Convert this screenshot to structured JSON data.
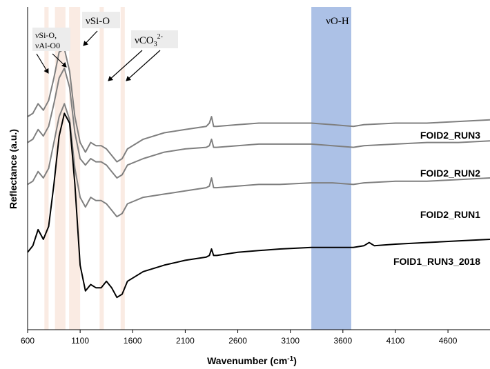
{
  "chart_data": {
    "type": "line",
    "xlabel": "Wavenumber (cm",
    "xlabel_sup": "-1",
    "xlabel_close": ")",
    "ylabel": "Reflectance (a.u.)",
    "xlim": [
      600,
      5000
    ],
    "ylim": [
      0,
      100
    ],
    "y_ticks_shown": false,
    "x_ticks": [
      600,
      1100,
      1600,
      2100,
      2600,
      3100,
      3600,
      4100,
      4600
    ],
    "grid": false,
    "bands": [
      {
        "range": [
          760,
          800
        ],
        "color": "#f7ddd0",
        "opacity": 0.6
      },
      {
        "range": [
          860,
          960
        ],
        "color": "#f7ddd0",
        "opacity": 0.6
      },
      {
        "range": [
          995,
          1100
        ],
        "color": "#f7ddd0",
        "opacity": 0.6
      },
      {
        "range": [
          1285,
          1325
        ],
        "color": "#f7ddd0",
        "opacity": 0.6
      },
      {
        "range": [
          1485,
          1525
        ],
        "color": "#f7ddd0",
        "opacity": 0.6
      },
      {
        "range": [
          3300,
          3680
        ],
        "color": "#7f9fd8",
        "opacity": 0.65
      }
    ],
    "annotations": [
      {
        "id": "si-o-al-o",
        "lines": [
          "νSi-O,",
          "νAl-O0"
        ]
      },
      {
        "id": "si-o",
        "lines": [
          "νSi-O"
        ]
      },
      {
        "id": "co3",
        "lines": [
          "νCO"
        ],
        "sub": "3",
        "sup": "2-"
      },
      {
        "id": "o-h",
        "lines": [
          "νO-H"
        ]
      }
    ],
    "series": [
      {
        "name": "FOID2_RUN3",
        "color": "#7f7f7f",
        "x": [
          600,
          650,
          700,
          750,
          800,
          850,
          900,
          950,
          1000,
          1050,
          1100,
          1150,
          1200,
          1250,
          1300,
          1350,
          1400,
          1450,
          1500,
          1550,
          1700,
          1900,
          2100,
          2300,
          2330,
          2350,
          2370,
          2400,
          2600,
          2800,
          3000,
          3300,
          3500,
          3700,
          3800,
          4100,
          4400,
          4700,
          5000
        ],
        "y": [
          66,
          67,
          70,
          68,
          71,
          78,
          86,
          87,
          80,
          66,
          58,
          55,
          58,
          57,
          57,
          56,
          54,
          52,
          53,
          56,
          59,
          61,
          62,
          63,
          64,
          66,
          63,
          63,
          63.5,
          64,
          64,
          64,
          63.5,
          63,
          63.5,
          64,
          64,
          64.5,
          65
        ]
      },
      {
        "name": "FOID2_RUN2",
        "color": "#7f7f7f",
        "x": [
          600,
          650,
          700,
          750,
          800,
          850,
          900,
          950,
          1000,
          1050,
          1100,
          1150,
          1200,
          1250,
          1300,
          1350,
          1400,
          1450,
          1500,
          1550,
          1700,
          1900,
          2100,
          2300,
          2330,
          2350,
          2370,
          2400,
          2600,
          2800,
          3000,
          3300,
          3500,
          3700,
          3800,
          4100,
          4400,
          4700,
          5000
        ],
        "y": [
          58,
          59,
          62,
          60,
          63,
          70,
          78,
          81,
          75,
          61,
          53,
          51,
          53,
          52,
          52,
          51,
          49,
          47,
          48,
          51,
          53,
          55,
          56,
          56.5,
          57,
          59,
          56.5,
          56.5,
          57,
          57.5,
          57.5,
          57.5,
          57,
          56.5,
          57,
          57.5,
          58,
          58,
          58.5
        ]
      },
      {
        "name": "FOID2_RUN1",
        "color": "#7f7f7f",
        "x": [
          600,
          650,
          700,
          750,
          800,
          850,
          900,
          950,
          1000,
          1050,
          1100,
          1150,
          1200,
          1250,
          1300,
          1350,
          1400,
          1450,
          1500,
          1550,
          1700,
          1900,
          2100,
          2300,
          2330,
          2350,
          2370,
          2400,
          2600,
          2800,
          3000,
          3300,
          3500,
          3700,
          3800,
          4100,
          4400,
          4700,
          5000
        ],
        "y": [
          45,
          46,
          49,
          47,
          50,
          58,
          66,
          70,
          65,
          50,
          41,
          38,
          41,
          40,
          40,
          39,
          37,
          35,
          36,
          39,
          41,
          42,
          43,
          44,
          44.5,
          47,
          44,
          44,
          44.5,
          45,
          45,
          45.5,
          45.5,
          45,
          45.5,
          46,
          46,
          46.5,
          47
        ]
      },
      {
        "name": "FOID1_RUN3_2018",
        "color": "#000000",
        "x": [
          600,
          650,
          700,
          750,
          800,
          850,
          900,
          950,
          1000,
          1050,
          1100,
          1150,
          1200,
          1250,
          1300,
          1350,
          1400,
          1450,
          1500,
          1550,
          1700,
          1900,
          2100,
          2300,
          2330,
          2350,
          2370,
          2400,
          2600,
          2800,
          3000,
          3300,
          3500,
          3700,
          3800,
          3850,
          3900,
          4100,
          4400,
          4700,
          5000
        ],
        "y": [
          24,
          26,
          31,
          28,
          32,
          45,
          60,
          67,
          64,
          45,
          20,
          12,
          14,
          13,
          13,
          15,
          13,
          10,
          11,
          15,
          18,
          20,
          21.5,
          22.5,
          23,
          25,
          23,
          23,
          24,
          24.5,
          25,
          25.5,
          25.5,
          25.5,
          26,
          27,
          26,
          26.5,
          27,
          27.5,
          28
        ]
      }
    ]
  }
}
